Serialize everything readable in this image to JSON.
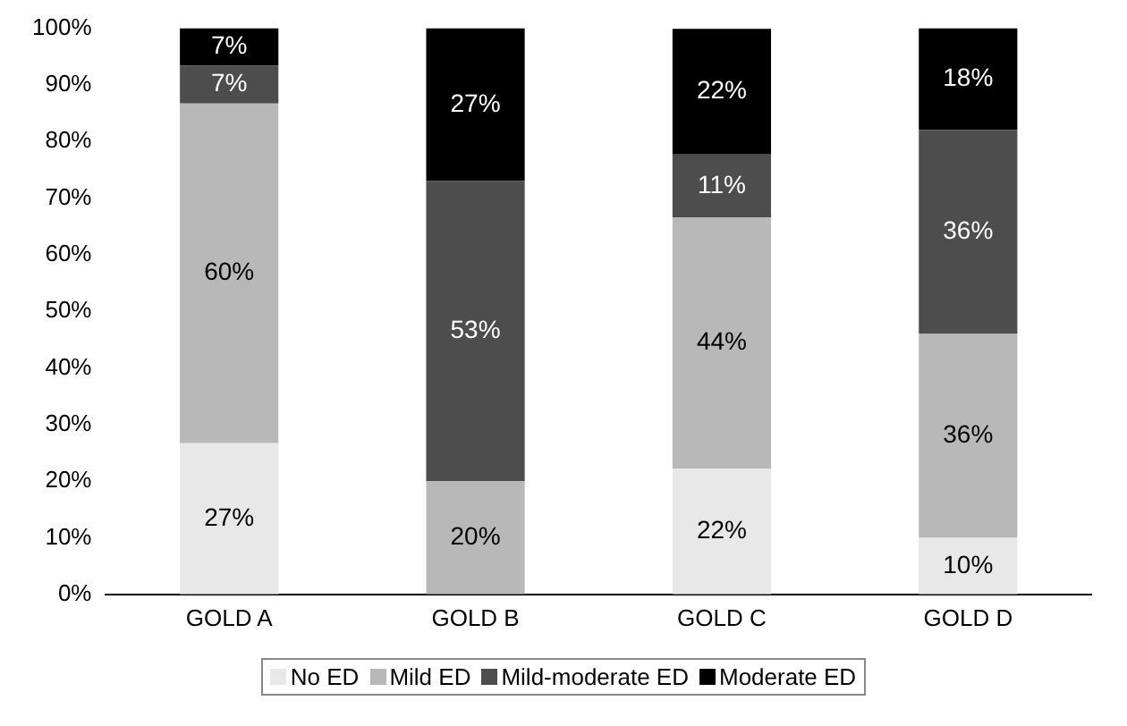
{
  "chart_data": {
    "type": "bar",
    "stacked": true,
    "categories": [
      "GOLD A",
      "GOLD B",
      "GOLD C",
      "GOLD D"
    ],
    "series": [
      {
        "name": "No ED",
        "color": "#e8e8e8",
        "values": [
          26.7,
          0,
          22.2,
          10
        ],
        "value_labels": [
          "27%",
          null,
          "22%",
          "10%"
        ]
      },
      {
        "name": "Mild ED",
        "color": "#b8b8b8",
        "values": [
          60,
          20,
          44.4,
          36
        ],
        "value_labels": [
          "60%",
          "20%",
          "44%",
          "36%"
        ]
      },
      {
        "name": "Mild-moderate ED",
        "color": "#4d4d4d",
        "values": [
          6.7,
          53,
          11.1,
          36
        ],
        "value_labels": [
          "7%",
          "53%",
          "11%",
          "36%"
        ]
      },
      {
        "name": "Moderate ED",
        "color": "#000000",
        "values": [
          6.6,
          27,
          22.2,
          18
        ],
        "value_labels": [
          "7%",
          "27%",
          "22%",
          "18%"
        ]
      }
    ],
    "ylim": [
      0,
      100
    ],
    "yticks": [
      {
        "value": 0,
        "label": "0%"
      },
      {
        "value": 10,
        "label": "10%"
      },
      {
        "value": 20,
        "label": "20%"
      },
      {
        "value": 30,
        "label": "30%"
      },
      {
        "value": 40,
        "label": "40%"
      },
      {
        "value": 50,
        "label": "50%"
      },
      {
        "value": 60,
        "label": "60%"
      },
      {
        "value": 70,
        "label": "70%"
      },
      {
        "value": 80,
        "label": "80%"
      },
      {
        "value": 90,
        "label": "90%"
      },
      {
        "value": 100,
        "label": "100%"
      }
    ],
    "grid": false,
    "legend": "bottom"
  }
}
